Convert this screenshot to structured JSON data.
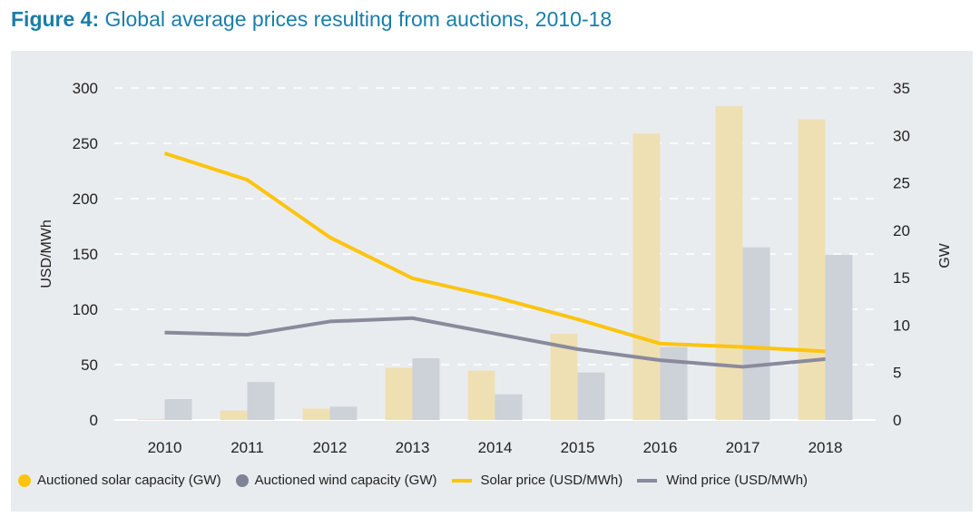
{
  "title": {
    "prefix": "Figure 4:",
    "text": "Global average prices resulting from auctions, 2010-18"
  },
  "colors": {
    "title": "#1a7ea8",
    "solar_bar": "#efe0b4",
    "wind_bar": "#cdd1d8",
    "solar_line": "#fcc40f",
    "wind_line": "#8a8a9c",
    "legend_solar_dot": "#fcc40f",
    "legend_wind_dot": "#7e8496",
    "grid": "#ffffff",
    "background": "#e9ecef"
  },
  "chart_data": {
    "type": "bar",
    "title": "Global average prices resulting from auctions, 2010-18",
    "categories": [
      "2010",
      "2011",
      "2012",
      "2013",
      "2014",
      "2015",
      "2016",
      "2017",
      "2018"
    ],
    "series": [
      {
        "name": "Auctioned solar capacity (GW)",
        "type": "bar",
        "axis": "right",
        "values": [
          0.1,
          1.0,
          1.2,
          5.5,
          5.2,
          9.1,
          30.2,
          33.1,
          31.7
        ]
      },
      {
        "name": "Auctioned wind capacity (GW)",
        "type": "bar",
        "axis": "right",
        "values": [
          2.2,
          4.0,
          1.4,
          6.5,
          2.7,
          5.0,
          7.7,
          18.2,
          17.4
        ]
      },
      {
        "name": "Solar price (USD/MWh)",
        "type": "line",
        "axis": "left",
        "values": [
          241,
          217,
          165,
          128,
          111,
          91,
          69,
          66,
          62
        ]
      },
      {
        "name": "Wind price (USD/MWh)",
        "type": "line",
        "axis": "left",
        "values": [
          79,
          77,
          89,
          92,
          78,
          64,
          54,
          48,
          55
        ]
      }
    ],
    "y_left": {
      "label": "USD/MWh",
      "range": [
        0,
        300
      ],
      "ticks": [
        "0",
        "50",
        "100",
        "150",
        "200",
        "250",
        "300"
      ]
    },
    "y_right": {
      "label": "GW",
      "range": [
        0,
        35
      ],
      "ticks": [
        "0",
        "5",
        "10",
        "15",
        "20",
        "25",
        "30",
        "35"
      ]
    },
    "xlabel": "",
    "grid": true,
    "legend_position": "bottom"
  },
  "legend": [
    {
      "label": "Auctioned solar capacity (GW)",
      "marker": "dot",
      "color": "#fcc40f"
    },
    {
      "label": "Auctioned wind capacity (GW)",
      "marker": "dot",
      "color": "#7e8496"
    },
    {
      "label": "Solar price (USD/MWh)",
      "marker": "line",
      "color": "#fcc40f"
    },
    {
      "label": "Wind price (USD/MWh)",
      "marker": "line",
      "color": "#8a8a9c"
    }
  ]
}
